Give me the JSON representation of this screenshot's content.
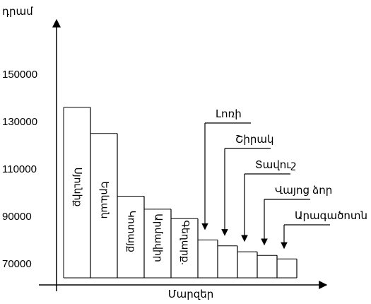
{
  "chart_data": {
    "type": "bar",
    "ylabel": "դրամ",
    "xlabel": "Մարզեր",
    "y_ticks": [
      70000,
      90000,
      110000,
      130000,
      150000
    ],
    "y_range": [
      64000,
      173000
    ],
    "grid": false,
    "categories": [
      "Սյունիք",
      "Երևան",
      "Կոտայք",
      "Արմավիր",
      "Գեղարք.",
      "Լոռի",
      "Շիրակ",
      "Տավուշ",
      "Վայոց ձոր",
      "Արագածոտն"
    ],
    "values": [
      136000,
      125000,
      98500,
      93000,
      89000,
      80000,
      77500,
      75000,
      73500,
      72000
    ],
    "inside_labels": [
      true,
      true,
      true,
      true,
      true,
      false,
      false,
      false,
      false,
      false
    ]
  }
}
